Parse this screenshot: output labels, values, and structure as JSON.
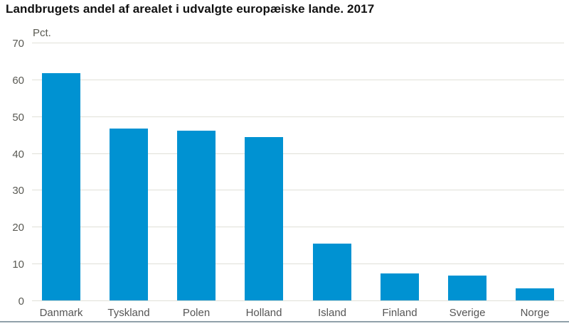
{
  "chart_data": {
    "type": "bar",
    "title": "Landbrugets andel af arealet i udvalgte europæiske lande. 2017",
    "ylabel": "Pct.",
    "xlabel": "",
    "categories": [
      "Danmark",
      "Tyskland",
      "Polen",
      "Holland",
      "Island",
      "Finland",
      "Sverige",
      "Norge"
    ],
    "values": [
      61.7,
      46.7,
      46.0,
      44.3,
      15.5,
      7.4,
      6.7,
      3.2
    ],
    "ylim": [
      0,
      70
    ],
    "ytick_step": 10,
    "yticks": [
      0,
      10,
      20,
      30,
      40,
      50,
      60,
      70
    ],
    "grid": true,
    "legend_position": "none",
    "colors": {
      "bar": "#0092d2",
      "gridline": "#e0e0d8",
      "title_text": "#111111",
      "axis_tick_text": "#5a5a54",
      "category_text": "#555555",
      "unit_text": "#5a5a52",
      "bottom_rule": "#90a0aa",
      "background": "#ffffff"
    }
  }
}
